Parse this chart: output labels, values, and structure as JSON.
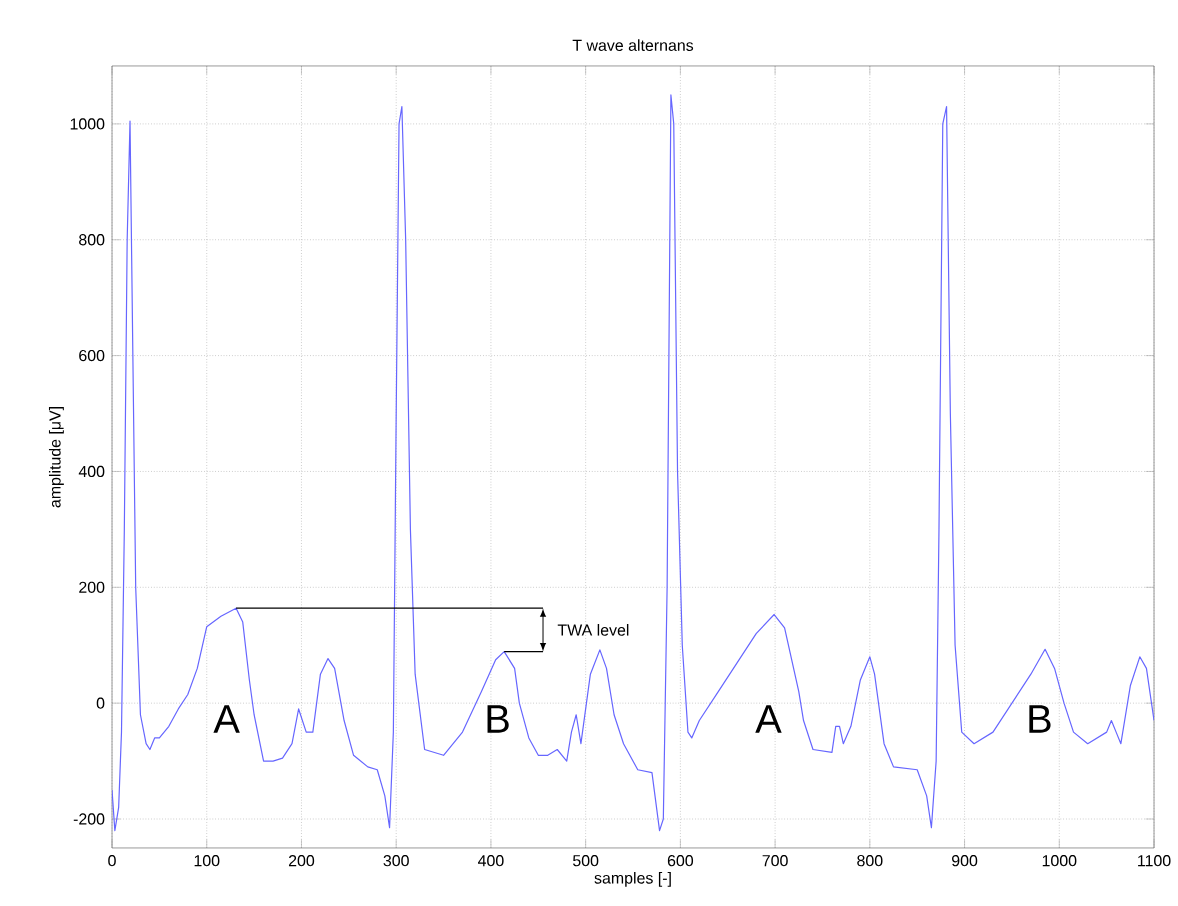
{
  "chart_data": {
    "type": "line",
    "title": "T wave alternans",
    "xlabel": "samples [-]",
    "ylabel": "amplitude [μV]",
    "xlim": [
      0,
      1100
    ],
    "ylim": [
      -250,
      1100
    ],
    "xticks": [
      0,
      100,
      200,
      300,
      400,
      500,
      600,
      700,
      800,
      900,
      1000,
      1100
    ],
    "yticks": [
      -200,
      0,
      200,
      400,
      600,
      800,
      1000
    ],
    "grid": true,
    "series": [
      {
        "color": "#6666ff",
        "x": [
          0,
          3,
          7,
          10,
          13,
          16,
          19,
          22,
          25,
          30,
          36,
          40,
          45,
          50,
          60,
          70,
          80,
          90,
          100,
          115,
          131,
          138,
          145,
          150,
          160,
          170,
          180,
          190,
          197,
          205,
          212,
          220,
          228,
          235,
          245,
          255,
          270,
          280,
          288,
          293,
          297,
          300,
          303,
          306,
          310,
          315,
          320,
          330,
          350,
          370,
          390,
          405,
          414,
          425,
          430,
          440,
          450,
          460,
          470,
          480,
          485,
          490,
          495,
          505,
          515,
          522,
          530,
          540,
          555,
          570,
          578,
          582,
          586,
          590,
          593,
          597,
          602,
          608,
          612,
          620,
          640,
          660,
          680,
          699,
          710,
          725,
          730,
          740,
          760,
          764,
          768,
          772,
          780,
          790,
          800,
          805,
          815,
          825,
          850,
          860,
          865,
          870,
          873,
          877,
          881,
          885,
          890,
          897,
          910,
          930,
          950,
          970,
          985,
          995,
          1005,
          1015,
          1030,
          1050,
          1055,
          1060,
          1065,
          1075,
          1085,
          1092,
          1100
        ],
        "values": [
          -150,
          -220,
          -180,
          -50,
          300,
          800,
          1005,
          600,
          200,
          -20,
          -70,
          -80,
          -60,
          -60,
          -40,
          -10,
          15,
          60,
          132,
          150,
          164,
          140,
          40,
          -20,
          -100,
          -100,
          -95,
          -70,
          -10,
          -50,
          -50,
          50,
          77,
          60,
          -30,
          -90,
          -110,
          -115,
          -160,
          -215,
          -50,
          500,
          1000,
          1030,
          800,
          300,
          50,
          -80,
          -90,
          -50,
          20,
          75,
          89,
          60,
          0,
          -60,
          -90,
          -90,
          -80,
          -100,
          -50,
          -20,
          -70,
          50,
          92,
          60,
          -20,
          -70,
          -115,
          -120,
          -220,
          -200,
          200,
          1050,
          1000,
          400,
          100,
          -50,
          -60,
          -30,
          20,
          70,
          120,
          153,
          130,
          20,
          -30,
          -80,
          -85,
          -40,
          -40,
          -70,
          -40,
          40,
          80,
          50,
          -70,
          -110,
          -115,
          -160,
          -215,
          -100,
          300,
          1000,
          1030,
          500,
          100,
          -50,
          -70,
          -50,
          0,
          50,
          93,
          60,
          0,
          -50,
          -70,
          -50,
          -30,
          -50,
          -70,
          30,
          80,
          60,
          -30
        ]
      },
      {
        "type": "line",
        "color": "#000000",
        "x": [
          131,
          455
        ],
        "values": [
          164,
          164
        ]
      },
      {
        "type": "line",
        "color": "#000000",
        "x": [
          414,
          455
        ],
        "values": [
          89,
          89
        ]
      }
    ],
    "annotations": [
      "TWA level",
      "A",
      "B",
      "A",
      "B"
    ]
  }
}
